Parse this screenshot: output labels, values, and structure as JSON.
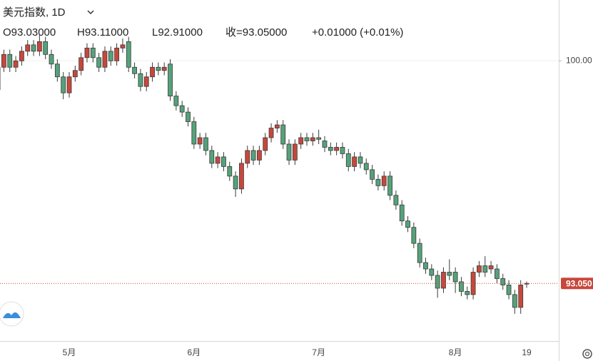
{
  "chart_data": {
    "type": "candlestick",
    "title": "美元指数, 1D",
    "ohlc_labels": [
      "O93.03000",
      "H93.11000",
      "L92.91000",
      "收=93.05000",
      "+0.01000 (+0.01%)"
    ],
    "categories": [
      null,
      null,
      null,
      null,
      null,
      null,
      null,
      null,
      null,
      null,
      null,
      null,
      "5月",
      null,
      null,
      null,
      null,
      null,
      null,
      null,
      null,
      null,
      null,
      null,
      null,
      null,
      null,
      null,
      null,
      null,
      null,
      null,
      null,
      "6月",
      null,
      null,
      null,
      null,
      null,
      null,
      null,
      null,
      null,
      null,
      null,
      null,
      null,
      null,
      null,
      null,
      null,
      null,
      null,
      null,
      "7月",
      null,
      null,
      null,
      null,
      null,
      null,
      null,
      null,
      null,
      null,
      null,
      null,
      null,
      null,
      null,
      null,
      null,
      null,
      null,
      null,
      null,
      null,
      "8月",
      null,
      null,
      null,
      null,
      null,
      null,
      null,
      null,
      null,
      null,
      null,
      "19"
    ],
    "open": [
      99.1,
      99.8,
      100.2,
      99.8,
      100.0,
      100.3,
      100.5,
      100.3,
      100.6,
      100.2,
      99.9,
      99.5,
      99.0,
      99.5,
      99.7,
      100.1,
      100.4,
      100.1,
      99.8,
      100.3,
      100.0,
      100.4,
      100.6,
      99.8,
      99.6,
      99.2,
      99.5,
      99.8,
      99.7,
      99.9,
      98.9,
      98.6,
      98.4,
      98.1,
      97.4,
      97.6,
      97.2,
      96.8,
      97.0,
      96.7,
      96.4,
      96.0,
      96.8,
      97.2,
      96.9,
      97.2,
      97.6,
      97.9,
      98.0,
      97.4,
      96.9,
      97.4,
      97.6,
      97.5,
      97.6,
      97.5,
      97.3,
      97.2,
      97.3,
      97.1,
      96.7,
      97.0,
      96.8,
      96.6,
      96.3,
      96.1,
      96.4,
      95.8,
      95.5,
      95.0,
      94.8,
      94.3,
      93.7,
      93.5,
      93.3,
      92.9,
      93.4,
      93.4,
      93.1,
      92.8,
      92.7,
      93.4,
      93.6,
      93.5,
      93.5,
      93.2,
      93.0,
      92.7,
      92.3,
      93.03
    ],
    "high": [
      99.95,
      100.35,
      100.35,
      100.15,
      100.45,
      100.65,
      100.65,
      100.8,
      100.75,
      100.35,
      100.05,
      99.65,
      99.65,
      99.85,
      100.25,
      100.55,
      100.55,
      100.25,
      100.45,
      100.45,
      100.55,
      100.7,
      100.75,
      99.95,
      99.75,
      99.65,
      99.95,
      99.95,
      99.95,
      100.05,
      99.05,
      98.75,
      98.55,
      98.25,
      97.75,
      97.75,
      97.35,
      97.15,
      97.15,
      96.85,
      96.55,
      96.95,
      97.35,
      97.35,
      97.35,
      97.75,
      98.05,
      98.15,
      98.15,
      97.55,
      97.55,
      97.75,
      97.75,
      97.75,
      97.85,
      97.65,
      97.45,
      97.45,
      97.45,
      97.25,
      97.15,
      97.15,
      96.95,
      96.75,
      96.45,
      96.55,
      96.55,
      95.95,
      95.65,
      95.15,
      94.95,
      94.45,
      93.85,
      93.65,
      93.45,
      93.55,
      93.8,
      93.55,
      93.25,
      92.95,
      93.55,
      93.75,
      93.9,
      93.75,
      93.65,
      93.35,
      93.15,
      92.85,
      93.15,
      93.11
    ],
    "low": [
      98.95,
      99.65,
      99.65,
      99.65,
      99.85,
      100.15,
      100.15,
      100.15,
      100.05,
      99.75,
      99.35,
      98.8,
      98.85,
      99.35,
      99.55,
      99.95,
      99.95,
      99.65,
      99.65,
      99.85,
      99.85,
      100.25,
      99.65,
      99.45,
      99.05,
      99.05,
      99.35,
      99.55,
      99.55,
      98.75,
      98.45,
      98.25,
      97.95,
      97.25,
      97.25,
      97.05,
      96.65,
      96.65,
      96.55,
      96.25,
      95.75,
      95.85,
      96.65,
      96.75,
      96.75,
      97.05,
      97.45,
      97.75,
      97.25,
      96.75,
      96.75,
      97.25,
      97.35,
      97.35,
      97.4,
      97.15,
      97.05,
      97.05,
      96.95,
      96.55,
      96.55,
      96.65,
      96.45,
      96.15,
      95.95,
      95.95,
      95.65,
      95.35,
      94.85,
      94.65,
      94.15,
      93.55,
      93.35,
      93.15,
      92.6,
      92.75,
      93.15,
      92.75,
      92.65,
      92.55,
      92.55,
      93.25,
      93.25,
      93.35,
      93.05,
      92.85,
      92.55,
      92.1,
      92.1,
      92.91
    ],
    "close": [
      99.8,
      100.2,
      99.8,
      100.0,
      100.3,
      100.5,
      100.3,
      100.6,
      100.2,
      99.9,
      99.5,
      99.0,
      99.5,
      99.7,
      100.1,
      100.4,
      100.1,
      99.8,
      100.3,
      100.0,
      100.4,
      100.5,
      99.8,
      99.6,
      99.2,
      99.5,
      99.8,
      99.7,
      99.8,
      98.9,
      98.6,
      98.4,
      98.1,
      97.4,
      97.6,
      97.2,
      96.8,
      97.0,
      96.7,
      96.4,
      96.0,
      96.8,
      97.2,
      96.9,
      97.2,
      97.6,
      97.9,
      98.0,
      97.4,
      96.9,
      97.4,
      97.6,
      97.5,
      97.6,
      97.55,
      97.3,
      97.2,
      97.3,
      97.1,
      96.7,
      97.0,
      96.8,
      96.6,
      96.3,
      96.1,
      96.4,
      95.8,
      95.5,
      95.0,
      94.8,
      94.3,
      93.7,
      93.5,
      93.3,
      92.9,
      93.4,
      93.3,
      93.1,
      92.8,
      92.7,
      93.4,
      93.6,
      93.4,
      93.6,
      93.2,
      93.0,
      92.7,
      92.3,
      93.0,
      93.05
    ],
    "up_color": "#c8473b",
    "down_color": "#55a27a",
    "ylim": [
      91.25,
      101.9
    ],
    "yticks": [
      {
        "value": 100,
        "label": "100.00"
      }
    ],
    "last_price_label": "93.050"
  }
}
